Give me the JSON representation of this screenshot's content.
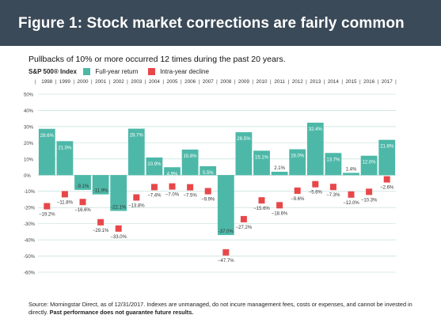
{
  "header": {
    "title": "Figure 1: Stock market corrections are fairly common"
  },
  "subtitle": "Pullbacks of 10% or more occurred 12 times during the past 20 years.",
  "footer": {
    "source": "Source: Morningstar Direct, as of 12/31/2017. Indexes are unmanaged, do not incure management fees, costs or expenses, and cannot be invested in directly.",
    "disclaimer": "Past performance does not guarantee future results."
  },
  "colors": {
    "header_bg": "#3b4a58",
    "bar": "#4db8a8",
    "marker": "#e8474a",
    "grid": "#b8dcd6"
  },
  "chart_data": {
    "type": "bar",
    "series_label_index": "S&P 500® Index",
    "legend": [
      "Full-year return",
      "Intra-year decline"
    ],
    "categories": [
      "1998",
      "1999",
      "2000",
      "2001",
      "2002",
      "2003",
      "2004",
      "2005",
      "2006",
      "2007",
      "2008",
      "2009",
      "2010",
      "2011",
      "2012",
      "2013",
      "2014",
      "2015",
      "2016",
      "2017"
    ],
    "series": [
      {
        "name": "Full-year return",
        "kind": "bar",
        "values": [
          28.6,
          21.0,
          -9.1,
          -11.9,
          -22.1,
          28.7,
          10.9,
          4.9,
          15.8,
          5.5,
          -37.0,
          26.5,
          15.1,
          2.1,
          16.0,
          32.4,
          13.7,
          1.4,
          12.0,
          21.8
        ],
        "labels": [
          "28.6%",
          "21.0%",
          "-9.1%",
          "-11.9%",
          "-22.1%",
          "28.7%",
          "10.9%",
          "4.9%",
          "15.8%",
          "5.5%",
          "-37.0%",
          "26.5%",
          "15.1%",
          "2.1%",
          "16.0%",
          "32.4%",
          "13.7%",
          "1.4%",
          "12.0%",
          "21.8%"
        ]
      },
      {
        "name": "Intra-year decline",
        "kind": "marker",
        "values": [
          -19.2,
          -11.8,
          -16.6,
          -29.1,
          -33.0,
          -13.8,
          -7.4,
          -7.0,
          -7.5,
          -9.9,
          -47.7,
          -27.2,
          -15.6,
          -18.6,
          -9.6,
          -5.6,
          -7.3,
          -12.0,
          -10.3,
          -2.6
        ],
        "labels": [
          "−19.2%",
          "−11.8%",
          "−16.6%",
          "−29.1%",
          "−33.0%",
          "−13.8%",
          "−7.4%",
          "−7.0%",
          "−7.5%",
          "−9.9%",
          "−47.7%",
          "−27.2%",
          "−15.6%",
          "−18.6%",
          "−9.6%",
          "−5.6%",
          "−7.3%",
          "−12.0%",
          "−10.3%",
          "−2.6%"
        ]
      }
    ],
    "ylim": [
      -60,
      50
    ],
    "yticks": [
      50,
      40,
      30,
      20,
      10,
      0,
      -10,
      -20,
      -30,
      -40,
      -50,
      -60
    ],
    "ytick_labels": [
      "50%",
      "40%",
      "30%",
      "20%",
      "10%",
      "0%",
      "-10%",
      "-20%",
      "-30%",
      "-40%",
      "-50%",
      "-60%"
    ],
    "grid": true,
    "legend_position": "top-left"
  }
}
